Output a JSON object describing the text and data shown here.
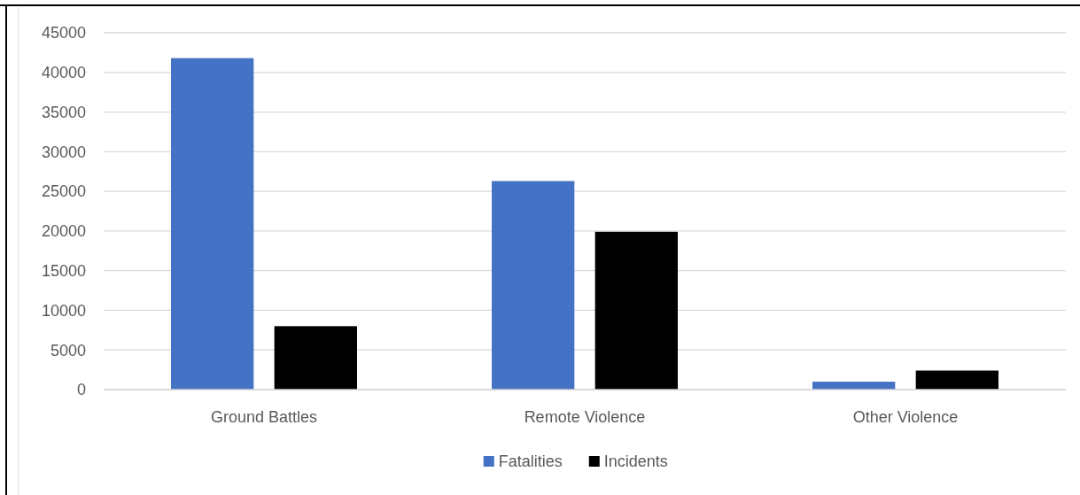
{
  "chart_data": {
    "type": "bar",
    "categories": [
      "Ground Battles",
      "Remote Violence",
      "Other Violence"
    ],
    "series": [
      {
        "name": "Fatalities",
        "color": "#4472c4",
        "values": [
          41800,
          26300,
          1000
        ]
      },
      {
        "name": "Incidents",
        "color": "#000000",
        "values": [
          8000,
          19900,
          2400
        ]
      }
    ],
    "ylim": [
      0,
      45000
    ],
    "yticks": [
      0,
      5000,
      10000,
      15000,
      20000,
      25000,
      30000,
      35000,
      40000,
      45000
    ],
    "grid": "y",
    "legend": "bottom"
  }
}
